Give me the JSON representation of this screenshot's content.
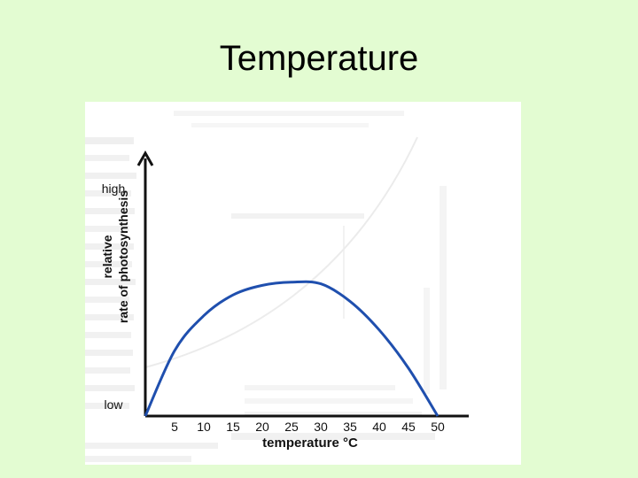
{
  "slide": {
    "title": "Temperature"
  },
  "chart_data": {
    "type": "line",
    "xlabel": "temperature °C",
    "ylabel_line1": "relative",
    "ylabel_line2": "rate of photosynthesis",
    "y_tick_high": "high",
    "y_tick_low": "low",
    "x_ticks": [
      "5",
      "10",
      "15",
      "20",
      "25",
      "30",
      "35",
      "40",
      "45",
      "50"
    ],
    "xlim": [
      0,
      55
    ],
    "ylim": [
      0,
      1
    ],
    "grid": false,
    "series": [
      {
        "x": [
          0,
          5,
          10,
          15,
          20,
          25,
          30,
          35,
          40,
          45,
          50
        ],
        "y": [
          0.0,
          0.41,
          0.63,
          0.76,
          0.82,
          0.84,
          0.83,
          0.72,
          0.54,
          0.3,
          0.0
        ],
        "color": "#1f4fae"
      }
    ]
  }
}
